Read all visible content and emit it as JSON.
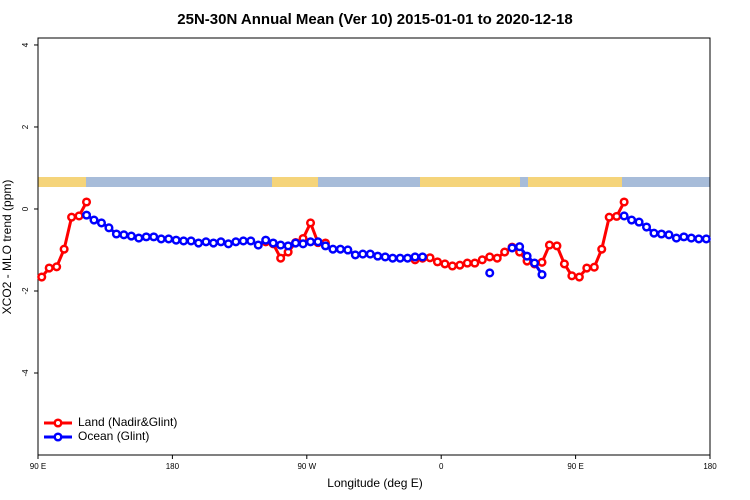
{
  "chart_data": {
    "type": "line",
    "title": "25N-30N Annual Mean (Ver 10)   2015-01-01 to 2020-12-18",
    "xlabel": "Longitude (deg E)",
    "ylabel": "XCO2 - MLO trend (ppm)",
    "x": [
      92.5,
      97.5,
      102.5,
      107.5,
      112.5,
      117.5,
      122.5,
      127.5,
      132.5,
      137.5,
      142.5,
      147.5,
      152.5,
      157.5,
      162.5,
      167.5,
      172.5,
      177.5,
      182.5,
      187.5,
      192.5,
      197.5,
      202.5,
      207.5,
      212.5,
      217.5,
      222.5,
      227.5,
      232.5,
      237.5,
      242.5,
      247.5,
      252.5,
      257.5,
      262.5,
      267.5,
      272.5,
      277.5,
      282.5,
      287.5,
      292.5,
      297.5,
      302.5,
      307.5,
      312.5,
      317.5,
      322.5,
      327.5,
      332.5,
      337.5,
      342.5,
      347.5,
      352.5,
      357.5,
      362.5,
      367.5,
      372.5,
      377.5,
      382.5,
      387.5,
      392.5,
      397.5,
      402.5,
      407.5,
      412.5,
      417.5,
      422.5,
      427.5,
      432.5,
      437.5,
      442.5,
      447.5,
      452.5,
      457.5,
      462.5,
      467.5,
      472.5,
      477.5,
      482.5,
      487.5,
      492.5,
      497.5,
      502.5,
      507.5,
      512.5,
      517.5,
      522.5,
      527.5,
      532.5,
      537.5
    ],
    "series": [
      {
        "name": "Land (Nadir&Glint)",
        "color": "#ff0000",
        "values": [
          -1.66,
          -1.44,
          -1.41,
          -0.98,
          -0.2,
          -0.17,
          0.17,
          null,
          null,
          null,
          null,
          null,
          null,
          null,
          null,
          null,
          null,
          null,
          null,
          null,
          null,
          null,
          null,
          null,
          null,
          null,
          null,
          null,
          null,
          null,
          -0.8,
          -0.85,
          -1.2,
          -1.05,
          -0.82,
          -0.72,
          -0.34,
          -0.82,
          -0.83,
          null,
          null,
          null,
          null,
          null,
          null,
          null,
          null,
          null,
          null,
          null,
          -1.24,
          -1.2,
          -1.19,
          -1.29,
          -1.34,
          -1.39,
          -1.37,
          -1.32,
          -1.32,
          -1.24,
          -1.17,
          -1.2,
          -1.05,
          -0.93,
          -1.05,
          -1.27,
          -1.34,
          -1.3,
          -0.88,
          -0.9,
          -1.34,
          -1.63,
          -1.66,
          -1.44,
          -1.42,
          -0.98,
          -0.2,
          -0.18,
          0.17,
          null,
          null,
          null,
          null,
          null,
          null,
          null,
          null,
          null,
          null,
          null
        ]
      },
      {
        "name": "Ocean (Glint)",
        "color": "#0000ff",
        "values": [
          null,
          null,
          null,
          null,
          null,
          null,
          -0.15,
          -0.27,
          -0.34,
          -0.46,
          -0.61,
          -0.63,
          -0.66,
          -0.71,
          -0.68,
          -0.68,
          -0.73,
          -0.73,
          -0.76,
          -0.78,
          -0.78,
          -0.83,
          -0.8,
          -0.83,
          -0.8,
          -0.85,
          -0.8,
          -0.78,
          -0.78,
          -0.88,
          -0.76,
          -0.83,
          -0.88,
          -0.9,
          -0.83,
          -0.85,
          -0.8,
          -0.8,
          -0.9,
          -0.98,
          -0.98,
          -1.0,
          -1.12,
          -1.1,
          -1.1,
          -1.15,
          -1.17,
          -1.2,
          -1.2,
          -1.2,
          -1.17,
          -1.17,
          null,
          null,
          null,
          null,
          null,
          null,
          null,
          null,
          -1.56,
          null,
          null,
          -0.95,
          -0.92,
          -1.15,
          -1.32,
          -1.6,
          null,
          null,
          null,
          null,
          null,
          null,
          null,
          null,
          null,
          null,
          -0.17,
          -0.27,
          -0.32,
          -0.44,
          -0.59,
          -0.61,
          -0.63,
          -0.71,
          -0.68,
          -0.71,
          -0.73,
          -0.73
        ]
      }
    ],
    "xlim": [
      90,
      540
    ],
    "xticks": [
      {
        "value": 90,
        "label": "90 E"
      },
      180,
      {
        "value": 270,
        "label": "90 W"
      },
      {
        "value": 360,
        "label": "0"
      },
      {
        "value": 450,
        "label": "90 E"
      },
      {
        "value": 540,
        "label": "180"
      }
    ],
    "ylim": [
      -6,
      4.17
    ],
    "yticks": [
      -4,
      -2,
      0,
      2,
      4
    ],
    "legend": "bottom-left"
  }
}
